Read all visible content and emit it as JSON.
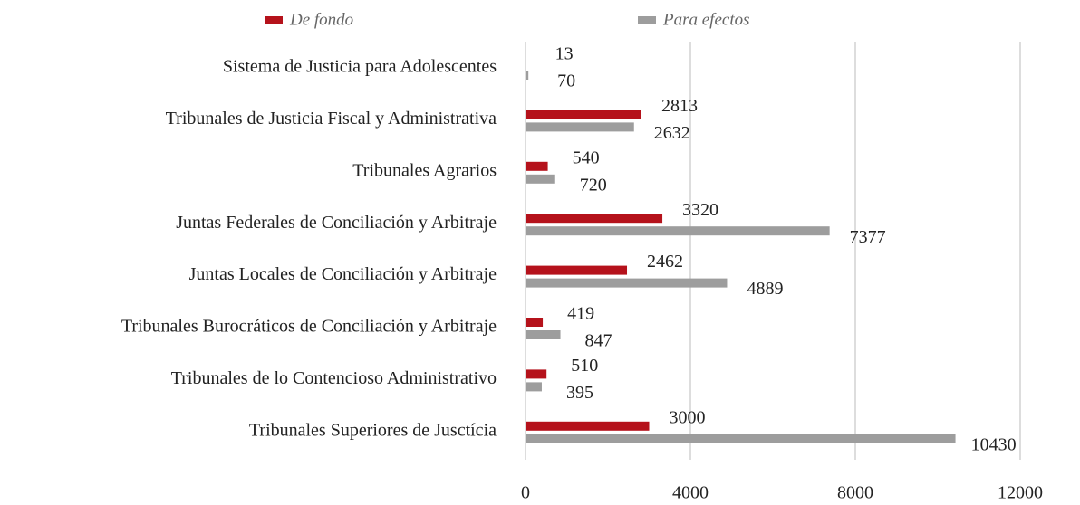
{
  "chart_data": {
    "type": "bar",
    "orientation": "horizontal",
    "categories": [
      "Sistema de Justicia para Adolescentes",
      "Tribunales de Justicia Fiscal y Administrativa",
      "Tribunales Agrarios",
      "Juntas Federales de Conciliación y Arbitraje",
      "Juntas Locales de Conciliación y Arbitraje",
      "Tribunales Burocráticos de Conciliación y Arbitraje",
      "Tribunales de lo Contencioso Administrativo",
      "Tribunales Superiores de Jusctícia"
    ],
    "series": [
      {
        "name": "De fondo",
        "color": "#b5121b",
        "values": [
          13,
          2813,
          540,
          3320,
          2462,
          419,
          510,
          3000
        ]
      },
      {
        "name": "Para efectos",
        "color": "#9d9d9d",
        "values": [
          70,
          2632,
          720,
          7377,
          4889,
          847,
          395,
          10430
        ]
      }
    ],
    "xlim": [
      0,
      12000
    ],
    "xticks": [
      0,
      4000,
      8000,
      12000
    ],
    "grid": true,
    "legend": "top"
  }
}
